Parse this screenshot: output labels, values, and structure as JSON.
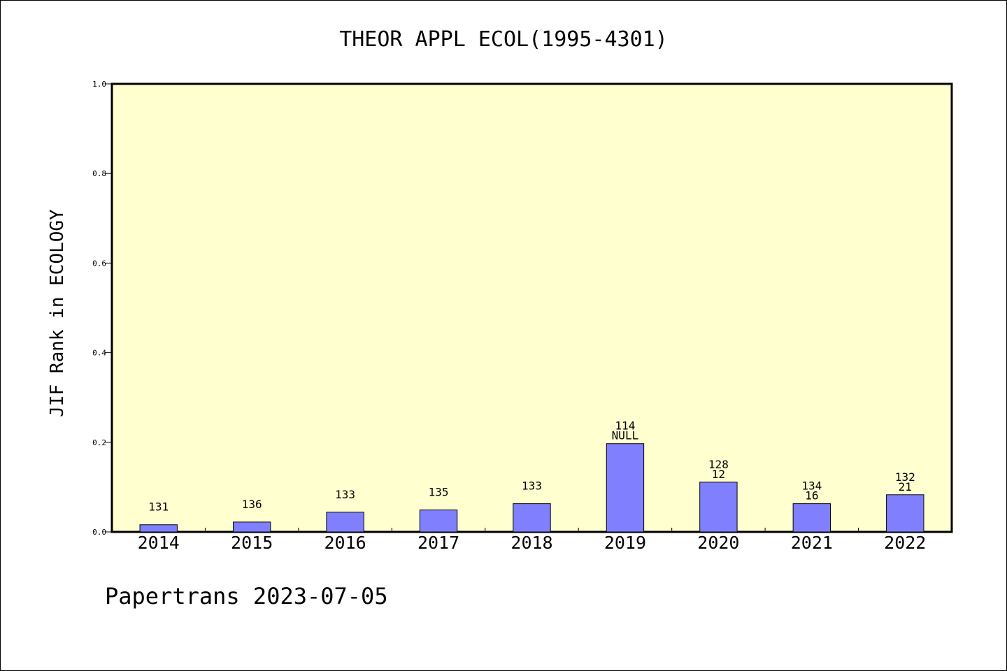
{
  "chart_data": {
    "type": "bar",
    "title": "THEOR APPL ECOL(1995-4301)",
    "xlabel": "",
    "ylabel": "JIF Rank in ECOLOGY",
    "ylim": [
      0,
      1
    ],
    "yticks": [
      "0.0",
      "0.2",
      "0.4",
      "0.6",
      "0.8",
      "1.0"
    ],
    "categories": [
      "2014",
      "2015",
      "2016",
      "2017",
      "2018",
      "2019",
      "2020",
      "2021",
      "2022"
    ],
    "values": [
      0.016,
      0.022,
      0.044,
      0.049,
      0.063,
      0.197,
      0.111,
      0.063,
      0.083
    ],
    "label_top": [
      "131",
      "136",
      "133",
      "135",
      "133",
      "114",
      "128",
      "134",
      "132"
    ],
    "label_bottom": [
      "",
      "",
      "",
      "",
      "",
      "NULL",
      "12",
      "16",
      "21"
    ],
    "grid": false,
    "legend": "none",
    "colors": {
      "bar": "#8080ff",
      "plot_bg": "#ffffd0"
    }
  },
  "footer": "Papertrans 2023-07-05"
}
